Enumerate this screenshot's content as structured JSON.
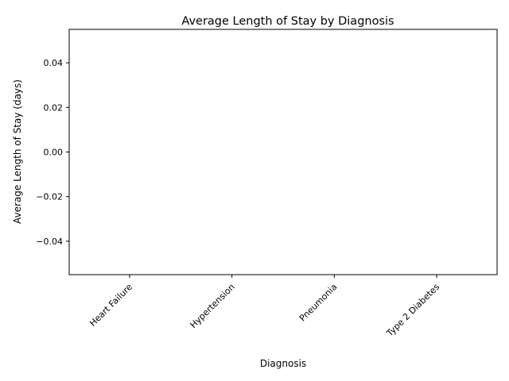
{
  "chart_data": {
    "type": "bar",
    "title": "Average Length of Stay by Diagnosis",
    "xlabel": "Diagnosis",
    "ylabel": "Average Length of Stay (days)",
    "categories": [
      "Heart Failure",
      "Hypertension",
      "Pneumonia",
      "Type 2 Diabetes"
    ],
    "values": [
      0,
      0,
      0,
      0
    ],
    "ylim": [
      -0.055,
      0.055
    ],
    "yticks": [
      -0.04,
      -0.02,
      0.0,
      0.02,
      0.04
    ],
    "ytick_labels": [
      "−0.04",
      "−0.02",
      "0.00",
      "0.02",
      "0.04"
    ],
    "grid": false,
    "legend": "none"
  }
}
